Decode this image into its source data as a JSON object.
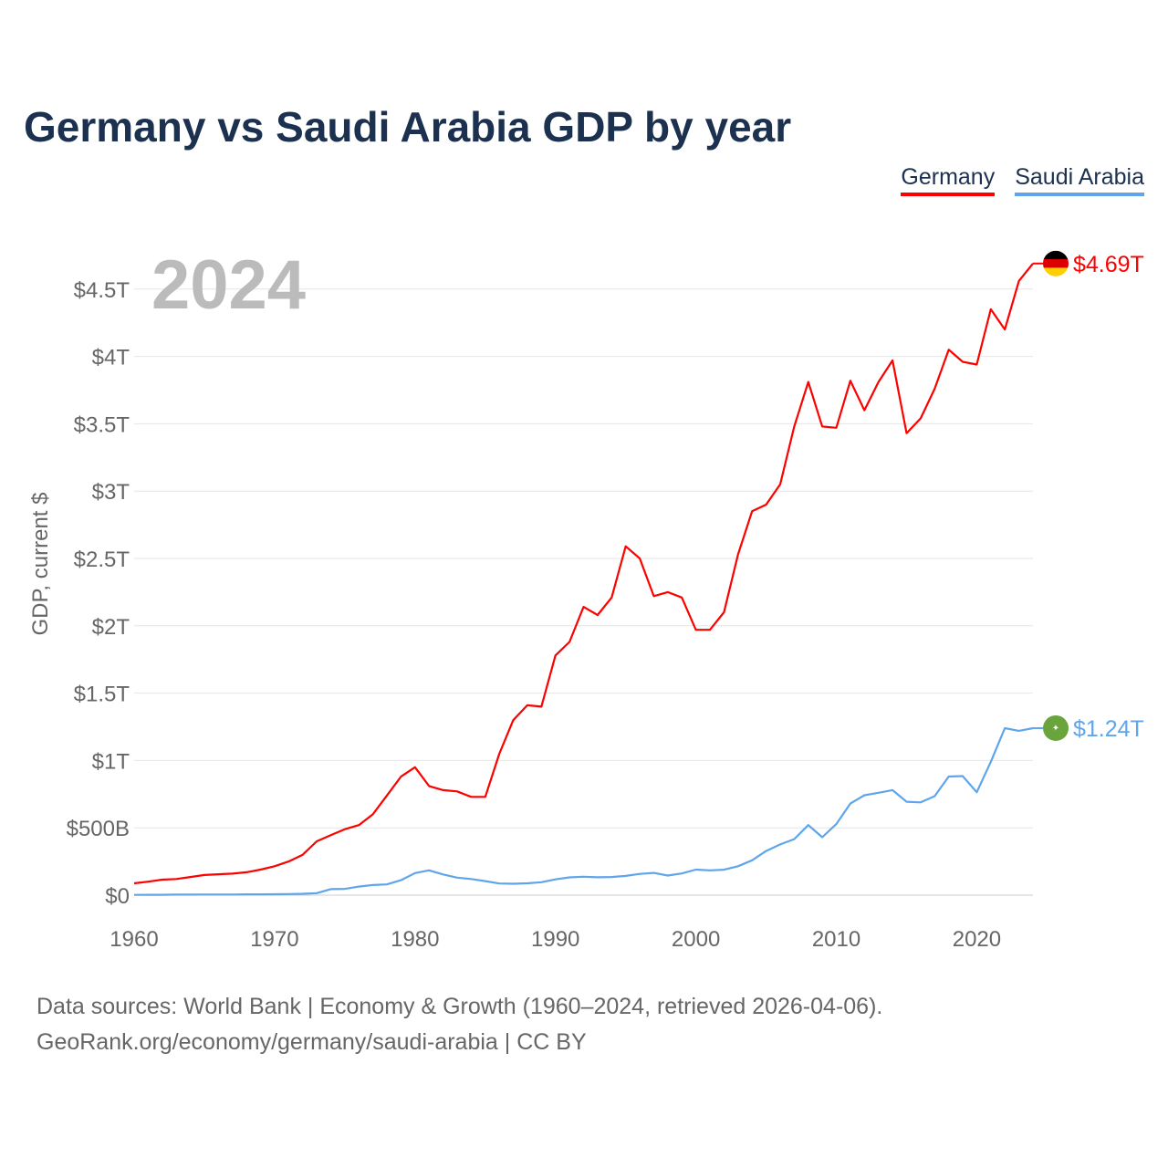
{
  "title": "Germany vs Saudi Arabia GDP by year",
  "legend": [
    {
      "label": "Germany",
      "color": "#ff0000"
    },
    {
      "label": "Saudi Arabia",
      "color": "#5ea5eb"
    }
  ],
  "source": {
    "line1": "Data sources: World Bank | Economy & Growth (1960–2024, retrieved 2026-04-06).",
    "line2": "GeoRank.org/economy/germany/saudi-arabia | CC BY"
  },
  "chart_data": {
    "type": "line",
    "title": "Germany vs Saudi Arabia GDP by year",
    "ylabel": "GDP, current $",
    "xlabel": "",
    "year_watermark": "2024",
    "xlim": [
      1960,
      2024
    ],
    "ylim": [
      0,
      4.7
    ],
    "x_ticks": [
      1960,
      1970,
      1980,
      1990,
      2000,
      2010,
      2020
    ],
    "y_ticks": [
      {
        "value": 0,
        "label": "$0"
      },
      {
        "value": 0.5,
        "label": "$500B"
      },
      {
        "value": 1,
        "label": "$1T"
      },
      {
        "value": 1.5,
        "label": "$1.5T"
      },
      {
        "value": 2,
        "label": "$2T"
      },
      {
        "value": 2.5,
        "label": "$2.5T"
      },
      {
        "value": 3,
        "label": "$3T"
      },
      {
        "value": 3.5,
        "label": "$3.5T"
      },
      {
        "value": 4,
        "label": "$4T"
      },
      {
        "value": 4.5,
        "label": "$4.5T"
      }
    ],
    "units": "trillion USD",
    "grid": true,
    "legend_position": "top-right",
    "x_start": 1960,
    "series": [
      {
        "name": "Germany",
        "color": "#ff0000",
        "end_label": "$4.69T",
        "values": [
          0.088,
          0.1,
          0.115,
          0.12,
          0.135,
          0.15,
          0.155,
          0.16,
          0.17,
          0.19,
          0.215,
          0.25,
          0.3,
          0.4,
          0.445,
          0.49,
          0.52,
          0.6,
          0.74,
          0.88,
          0.95,
          0.81,
          0.78,
          0.77,
          0.73,
          0.73,
          1.05,
          1.3,
          1.41,
          1.4,
          1.78,
          1.88,
          2.14,
          2.08,
          2.21,
          2.59,
          2.5,
          2.22,
          2.25,
          2.21,
          1.97,
          1.97,
          2.1,
          2.53,
          2.85,
          2.9,
          3.05,
          3.48,
          3.81,
          3.48,
          3.47,
          3.82,
          3.6,
          3.81,
          3.97,
          3.43,
          3.54,
          3.76,
          4.05,
          3.96,
          3.94,
          4.35,
          4.2,
          4.56,
          4.69
        ]
      },
      {
        "name": "Saudi Arabia",
        "color": "#5ea5eb",
        "end_label": "$1.24T",
        "values": [
          0.002,
          0.003,
          0.003,
          0.004,
          0.004,
          0.005,
          0.005,
          0.005,
          0.006,
          0.006,
          0.007,
          0.008,
          0.01,
          0.015,
          0.045,
          0.047,
          0.064,
          0.075,
          0.08,
          0.111,
          0.164,
          0.184,
          0.154,
          0.13,
          0.12,
          0.104,
          0.087,
          0.085,
          0.088,
          0.096,
          0.117,
          0.132,
          0.137,
          0.133,
          0.135,
          0.143,
          0.158,
          0.165,
          0.146,
          0.161,
          0.19,
          0.184,
          0.189,
          0.215,
          0.259,
          0.328,
          0.377,
          0.416,
          0.52,
          0.43,
          0.528,
          0.68,
          0.742,
          0.76,
          0.78,
          0.694,
          0.689,
          0.735,
          0.881,
          0.884,
          0.764,
          0.99,
          1.24,
          1.22,
          1.24
        ]
      }
    ]
  }
}
